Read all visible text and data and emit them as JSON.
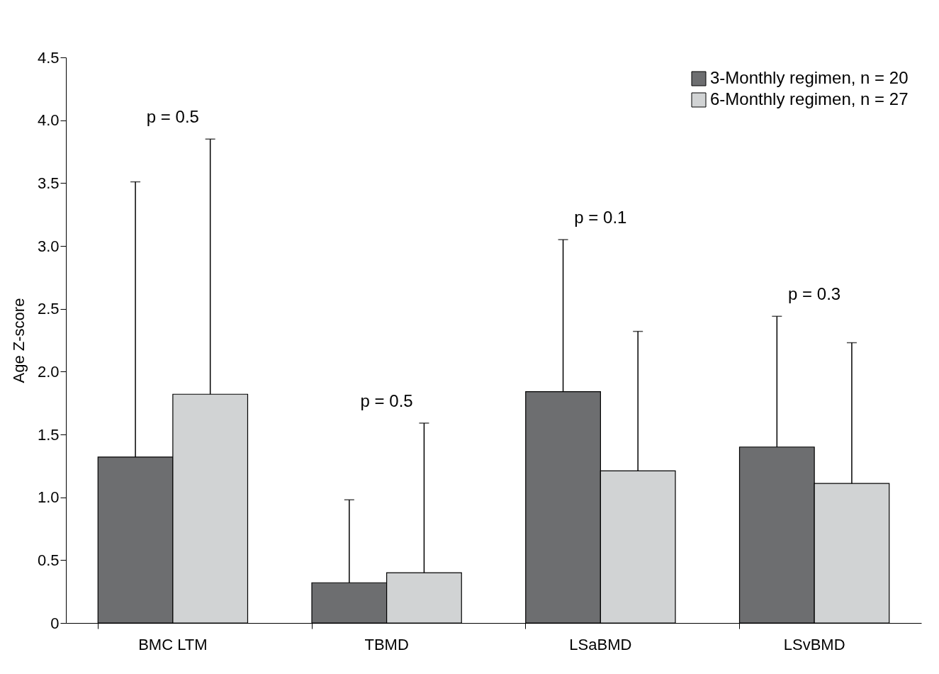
{
  "chart_data": {
    "type": "bar",
    "categories": [
      "BMC LTM",
      "TBMD",
      "LSaBMD",
      "LSvBMD"
    ],
    "ylabel": "Age Z-score",
    "series": [
      {
        "name": "3-Monthly regimen, n = 20",
        "color": "#6d6e70",
        "values": [
          1.32,
          0.32,
          1.84,
          1.4
        ],
        "errors": [
          [
            1.32,
            3.51
          ],
          [
            0.32,
            0.98
          ],
          [
            1.84,
            3.05
          ],
          [
            1.4,
            2.44
          ]
        ]
      },
      {
        "name": "6-Monthly regimen, n = 27",
        "color": "#d1d3d4",
        "values": [
          1.82,
          0.4,
          1.21,
          1.11
        ],
        "errors": [
          [
            1.82,
            3.85
          ],
          [
            0.4,
            1.59
          ],
          [
            1.21,
            2.32
          ],
          [
            1.11,
            2.23
          ]
        ]
      }
    ],
    "ylim": [
      0,
      4.5
    ],
    "yticks": [
      0,
      0.5,
      {
        "value": 1,
        "label": "1.0"
      },
      1.5,
      {
        "value": 2,
        "label": "2.0"
      },
      2.5,
      {
        "value": 3,
        "label": "3.0"
      },
      3.5,
      {
        "value": 4,
        "label": "4.0"
      },
      4.5
    ],
    "annotations": [
      "p = 0.5",
      "p = 0.5",
      "p = 0.1",
      "p = 0.3"
    ],
    "legend": "top right",
    "grid": false
  }
}
